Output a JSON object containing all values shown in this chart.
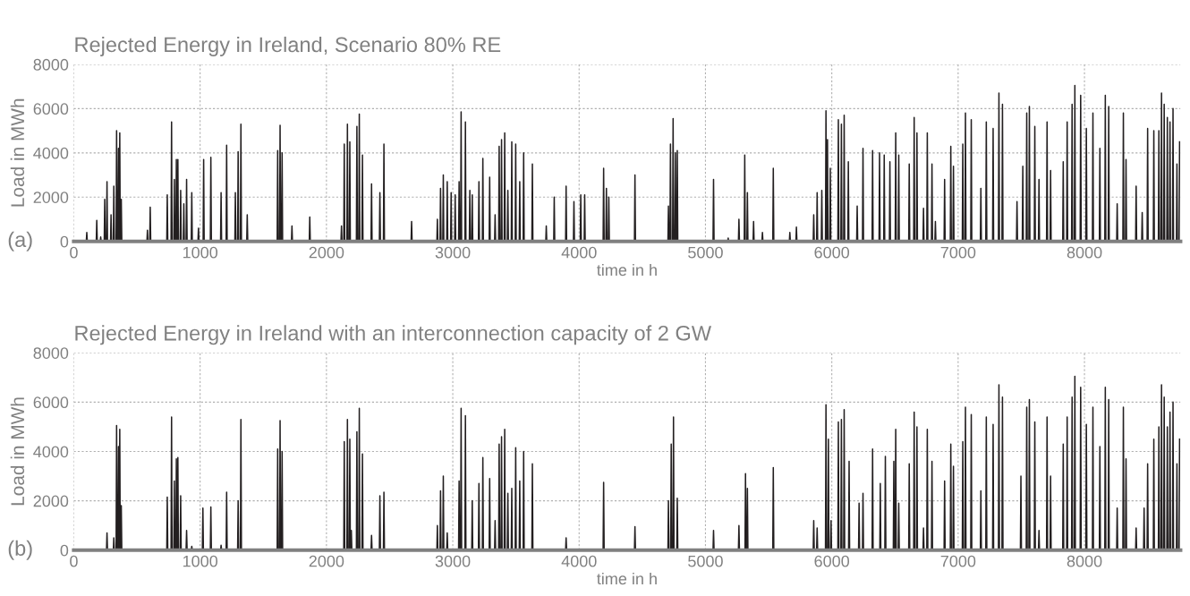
{
  "chart_data": [
    {
      "type": "line",
      "title": "Rejected Energy in Ireland, Scenario 80% RE",
      "xlabel": "time in h",
      "ylabel": "Load in MWh",
      "annotations": [
        "(a)"
      ],
      "color": "#231f20",
      "grid": true,
      "xlim": [
        0,
        8760
      ],
      "ylim": [
        0,
        8000
      ],
      "xticks": [
        0,
        1000,
        2000,
        3000,
        4000,
        5000,
        6000,
        7000,
        8000
      ],
      "yticks": [
        0,
        2000,
        4000,
        6000,
        8000
      ],
      "x": [
        0,
        99,
        103,
        107,
        178,
        182,
        186,
        209,
        213,
        217,
        241,
        245,
        249,
        259,
        263,
        267,
        291,
        295,
        299,
        313,
        317,
        321,
        335,
        339,
        343,
        350,
        354,
        358,
        360,
        364,
        368,
        372,
        376,
        380,
        579,
        583,
        587,
        601,
        605,
        609,
        736,
        740,
        744,
        770,
        774,
        778,
        792,
        796,
        800,
        808,
        812,
        816,
        820,
        824,
        828,
        842,
        846,
        850,
        867,
        871,
        875,
        889,
        893,
        897,
        930,
        934,
        938,
        983,
        987,
        991,
        1024,
        1028,
        1032,
        1081,
        1085,
        1089,
        1162,
        1166,
        1170,
        1206,
        1210,
        1214,
        1275,
        1279,
        1283,
        1297,
        1301,
        1305,
        1319,
        1323,
        1327,
        1369,
        1373,
        1377,
        1610,
        1614,
        1618,
        1629,
        1633,
        1637,
        1645,
        1649,
        1653,
        1723,
        1727,
        1731,
        1864,
        1868,
        1872,
        2115,
        2119,
        2123,
        2137,
        2141,
        2145,
        2162,
        2166,
        2170,
        2181,
        2185,
        2189,
        2237,
        2241,
        2245,
        2256,
        2260,
        2264,
        2281,
        2285,
        2289,
        2353,
        2357,
        2361,
        2419,
        2423,
        2427,
        2451,
        2455,
        2459,
        2670,
        2674,
        2678,
        2874,
        2878,
        2882,
        2899,
        2903,
        2907,
        2921,
        2925,
        2929,
        2952,
        2956,
        2960,
        2983,
        2987,
        2991,
        3015,
        3019,
        3023,
        3046,
        3050,
        3054,
        3062,
        3066,
        3070,
        3096,
        3100,
        3104,
        3131,
        3135,
        3139,
        3150,
        3154,
        3158,
        3203,
        3207,
        3211,
        3234,
        3238,
        3242,
        3288,
        3292,
        3296,
        3331,
        3335,
        3339,
        3363,
        3367,
        3371,
        3382,
        3386,
        3390,
        3407,
        3411,
        3415,
        3432,
        3436,
        3440,
        3463,
        3467,
        3471,
        3494,
        3498,
        3502,
        3526,
        3530,
        3534,
        3557,
        3561,
        3565,
        3626,
        3630,
        3634,
        3736,
        3740,
        3744,
        3799,
        3803,
        3807,
        3893,
        3897,
        3901,
        3955,
        3959,
        3963,
        4009,
        4013,
        4017,
        4040,
        4044,
        4048,
        4190,
        4194,
        4198,
        4212,
        4216,
        4220,
        4231,
        4235,
        4239,
        4438,
        4442,
        4446,
        4703,
        4707,
        4711,
        4719,
        4723,
        4727,
        4740,
        4744,
        4748,
        4758,
        4762,
        4766,
        4773,
        4777,
        4781,
        5060,
        5064,
        5068,
        5176,
        5180,
        5184,
        5261,
        5265,
        5269,
        5307,
        5311,
        5315,
        5328,
        5332,
        5336,
        5377,
        5381,
        5385,
        5447,
        5451,
        5455,
        5533,
        5537,
        5541,
        5664,
        5668,
        5672,
        5716,
        5720,
        5724,
        5853,
        5857,
        5861,
        5880,
        5884,
        5888,
        5917,
        5921,
        5925,
        5950,
        5954,
        5958,
        5962,
        5966,
        5970,
        5984,
        5988,
        5992,
        6048,
        6052,
        6056,
        6072,
        6076,
        6080,
        6094,
        6098,
        6102,
        6127,
        6131,
        6135,
        6197,
        6201,
        6205,
        6243,
        6247,
        6251,
        6319,
        6323,
        6327,
        6374,
        6378,
        6382,
        6411,
        6415,
        6419,
        6456,
        6460,
        6464,
        6502,
        6506,
        6510,
        6526,
        6530,
        6534,
        6609,
        6613,
        6617,
        6648,
        6652,
        6656,
        6670,
        6674,
        6678,
        6722,
        6726,
        6730,
        6752,
        6756,
        6760,
        6789,
        6793,
        6797,
        6816,
        6820,
        6824,
        6889,
        6893,
        6897,
        6938,
        6942,
        6946,
        6959,
        6963,
        6967,
        7033,
        7037,
        7041,
        7054,
        7058,
        7062,
        7100,
        7104,
        7108,
        7176,
        7180,
        7184,
        7219,
        7223,
        7227,
        7273,
        7277,
        7281,
        7319,
        7323,
        7327,
        7347,
        7351,
        7355,
        7462,
        7466,
        7470,
        7508,
        7512,
        7516,
        7539,
        7543,
        7547,
        7560,
        7564,
        7568,
        7603,
        7607,
        7611,
        7636,
        7640,
        7644,
        7700,
        7704,
        7708,
        7728,
        7732,
        7736,
        7828,
        7832,
        7836,
        7859,
        7863,
        7867,
        7898,
        7902,
        7906,
        7920,
        7924,
        7928,
        7966,
        7970,
        7974,
        8011,
        8015,
        8019,
        8063,
        8067,
        8071,
        8118,
        8122,
        8126,
        8161,
        8165,
        8169,
        8188,
        8192,
        8196,
        8255,
        8259,
        8263,
        8304,
        8308,
        8312,
        8325,
        8329,
        8333,
        8405,
        8409,
        8413,
        8453,
        8457,
        8461,
        8496,
        8500,
        8504,
        8545,
        8549,
        8553,
        8585,
        8589,
        8593,
        8606,
        8610,
        8614,
        8627,
        8631,
        8635,
        8652,
        8656,
        8660,
        8673,
        8677,
        8681,
        8697,
        8701,
        8705,
        8728,
        8732,
        8736,
        8749,
        8753
      ],
      "values": [
        0,
        0,
        400,
        0,
        0,
        950,
        0,
        0,
        200,
        0,
        0,
        1900,
        0,
        0,
        2700,
        0,
        0,
        1200,
        0,
        0,
        2500,
        0,
        0,
        5000,
        0,
        0,
        4200,
        0,
        0,
        4900,
        0,
        0,
        1900,
        0,
        0,
        500,
        0,
        0,
        1550,
        0,
        0,
        2100,
        0,
        0,
        5400,
        0,
        0,
        2800,
        0,
        0,
        3700,
        0,
        0,
        3700,
        0,
        0,
        2300,
        0,
        0,
        1700,
        0,
        0,
        2800,
        0,
        0,
        2200,
        0,
        0,
        600,
        0,
        0,
        3700,
        0,
        0,
        3800,
        0,
        0,
        2200,
        0,
        0,
        4350,
        0,
        0,
        2200,
        0,
        0,
        4050,
        0,
        0,
        5300,
        0,
        0,
        1200,
        0,
        0,
        4100,
        0,
        0,
        5250,
        0,
        0,
        4000,
        0,
        0,
        700,
        0,
        0,
        1100,
        0,
        0,
        700,
        0,
        0,
        4400,
        0,
        0,
        5300,
        0,
        0,
        4500,
        0,
        0,
        5200,
        0,
        0,
        5750,
        0,
        0,
        3900,
        0,
        0,
        2600,
        0,
        0,
        2200,
        0,
        0,
        4400,
        0,
        0,
        900,
        0,
        0,
        1000,
        0,
        0,
        2400,
        0,
        0,
        3000,
        0,
        0,
        2700,
        0,
        0,
        2200,
        0,
        0,
        2100,
        0,
        0,
        2700,
        0,
        0,
        5850,
        0,
        0,
        5400,
        0,
        0,
        2300,
        0,
        0,
        2100,
        0,
        0,
        2700,
        0,
        0,
        3750,
        0,
        0,
        2900,
        0,
        0,
        1200,
        0,
        0,
        4300,
        0,
        0,
        4600,
        0,
        0,
        4900,
        0,
        0,
        2300,
        0,
        0,
        4500,
        0,
        0,
        4400,
        0,
        0,
        2700,
        0,
        0,
        4000,
        0,
        0,
        3500,
        0,
        0,
        700,
        0,
        0,
        2000,
        0,
        0,
        2500,
        0,
        0,
        1800,
        0,
        0,
        2100,
        0,
        0,
        2100,
        0,
        0,
        3300,
        0,
        0,
        2400,
        0,
        0,
        2000,
        0,
        0,
        3000,
        0,
        0,
        1600,
        0,
        0,
        4400,
        0,
        0,
        5550,
        0,
        0,
        4000,
        0,
        0,
        4100,
        0,
        0,
        2800,
        0,
        0,
        150,
        0,
        0,
        1000,
        0,
        0,
        3900,
        0,
        0,
        2200,
        0,
        0,
        900,
        0,
        0,
        400,
        0,
        0,
        3300,
        0,
        0,
        400,
        0,
        0,
        650,
        0,
        0,
        1200,
        0,
        0,
        2200,
        0,
        0,
        2300,
        0,
        0,
        5900,
        0,
        0,
        4600,
        0,
        0,
        3300,
        0,
        0,
        5500,
        0,
        0,
        5300,
        0,
        0,
        5700,
        0,
        0,
        3600,
        0,
        0,
        1600,
        0,
        0,
        4200,
        0,
        0,
        4100,
        0,
        0,
        4000,
        0,
        0,
        3900,
        0,
        0,
        3600,
        0,
        0,
        4900,
        0,
        0,
        3900,
        0,
        0,
        3500,
        0,
        0,
        5600,
        0,
        0,
        4900,
        0,
        0,
        1500,
        0,
        0,
        4900,
        0,
        0,
        3500,
        0,
        0,
        900,
        0,
        0,
        2800,
        0,
        0,
        4300,
        0,
        0,
        3400,
        0,
        0,
        4400,
        0,
        0,
        5800,
        0,
        0,
        5500,
        0,
        0,
        2400,
        0,
        0,
        5400,
        0,
        0,
        5100,
        0,
        0,
        6700,
        0,
        0,
        6200,
        0,
        0,
        1800,
        0,
        0,
        3400,
        0,
        0,
        5800,
        0,
        0,
        6100,
        0,
        0,
        5200,
        0,
        0,
        2800,
        0,
        0,
        5400,
        0,
        0,
        3200,
        0,
        0,
        3600,
        0,
        0,
        5400,
        0,
        0,
        6200,
        0,
        0,
        7050,
        0,
        0,
        6600,
        0,
        0,
        5100,
        0,
        0,
        5800,
        0,
        0,
        4200,
        0,
        0,
        6600,
        0,
        0,
        6100,
        0,
        0,
        1700,
        0,
        0,
        5800,
        0,
        0,
        3700,
        0,
        0,
        2500,
        0,
        0,
        1300,
        0,
        0,
        5100,
        0,
        0,
        5000,
        0,
        0,
        5000,
        0,
        0,
        6700,
        0,
        0,
        6200,
        0,
        0,
        5600,
        0,
        0,
        5400,
        0,
        0,
        6000,
        0,
        0,
        3500,
        0,
        0,
        4500
      ]
    },
    {
      "type": "line",
      "title": "Rejected Energy in Ireland with an interconnection capacity of 2 GW",
      "xlabel": "time in h",
      "ylabel": "Load in MWh",
      "annotations": [
        "(b)"
      ],
      "color": "#231f20",
      "grid": true,
      "xlim": [
        0,
        8760
      ],
      "ylim": [
        0,
        8000
      ],
      "xticks": [
        0,
        1000,
        2000,
        3000,
        4000,
        5000,
        6000,
        7000,
        8000
      ],
      "yticks": [
        0,
        2000,
        4000,
        6000,
        8000
      ],
      "x": [
        0,
        259,
        263,
        267,
        313,
        317,
        321,
        335,
        339,
        343,
        350,
        354,
        358,
        360,
        364,
        368,
        372,
        376,
        380,
        736,
        740,
        744,
        770,
        774,
        778,
        792,
        796,
        800,
        808,
        812,
        816,
        820,
        824,
        828,
        842,
        846,
        850,
        889,
        893,
        897,
        930,
        934,
        938,
        1018,
        1022,
        1026,
        1081,
        1085,
        1089,
        1162,
        1166,
        1170,
        1206,
        1210,
        1214,
        1297,
        1301,
        1305,
        1319,
        1323,
        1327,
        1610,
        1614,
        1618,
        1629,
        1633,
        1637,
        1645,
        1649,
        1653,
        2137,
        2141,
        2145,
        2162,
        2166,
        2170,
        2181,
        2185,
        2189,
        2193,
        2197,
        2201,
        2237,
        2241,
        2245,
        2256,
        2260,
        2264,
        2281,
        2285,
        2289,
        2353,
        2357,
        2361,
        2419,
        2423,
        2427,
        2451,
        2455,
        2459,
        2874,
        2878,
        2882,
        2899,
        2903,
        2907,
        2921,
        2925,
        2929,
        2952,
        2956,
        2960,
        3046,
        3050,
        3054,
        3062,
        3066,
        3070,
        3096,
        3100,
        3104,
        3150,
        3154,
        3158,
        3203,
        3207,
        3211,
        3234,
        3238,
        3242,
        3288,
        3292,
        3296,
        3331,
        3335,
        3339,
        3363,
        3367,
        3371,
        3382,
        3386,
        3390,
        3407,
        3411,
        3415,
        3432,
        3436,
        3440,
        3463,
        3467,
        3471,
        3494,
        3498,
        3502,
        3526,
        3530,
        3534,
        3557,
        3561,
        3565,
        3626,
        3630,
        3634,
        3893,
        3897,
        3901,
        4190,
        4194,
        4198,
        4438,
        4442,
        4446,
        4703,
        4707,
        4711,
        4725,
        4729,
        4733,
        4743,
        4747,
        4751,
        4773,
        4777,
        4781,
        5060,
        5064,
        5068,
        5261,
        5265,
        5269,
        5313,
        5317,
        5321,
        5328,
        5332,
        5336,
        5533,
        5537,
        5541,
        5853,
        5857,
        5861,
        5880,
        5884,
        5888,
        5950,
        5954,
        5958,
        5969,
        5973,
        5977,
        5990,
        5994,
        5998,
        6048,
        6052,
        6056,
        6072,
        6076,
        6080,
        6094,
        6098,
        6102,
        6133,
        6137,
        6141,
        6212,
        6216,
        6220,
        6243,
        6247,
        6251,
        6319,
        6323,
        6327,
        6380,
        6384,
        6388,
        6420,
        6424,
        6428,
        6487,
        6491,
        6495,
        6502,
        6506,
        6510,
        6526,
        6530,
        6534,
        6609,
        6613,
        6617,
        6648,
        6652,
        6656,
        6670,
        6674,
        6678,
        6722,
        6726,
        6730,
        6752,
        6756,
        6760,
        6789,
        6793,
        6797,
        6889,
        6893,
        6897,
        6938,
        6942,
        6946,
        6959,
        6963,
        6967,
        7033,
        7037,
        7041,
        7054,
        7058,
        7062,
        7100,
        7104,
        7108,
        7176,
        7180,
        7184,
        7219,
        7223,
        7227,
        7273,
        7277,
        7281,
        7319,
        7323,
        7327,
        7347,
        7351,
        7355,
        7493,
        7497,
        7501,
        7539,
        7543,
        7547,
        7560,
        7564,
        7568,
        7603,
        7607,
        7611,
        7636,
        7640,
        7644,
        7700,
        7704,
        7708,
        7728,
        7732,
        7736,
        7828,
        7832,
        7836,
        7859,
        7863,
        7867,
        7898,
        7902,
        7906,
        7920,
        7924,
        7928,
        7966,
        7970,
        7974,
        8011,
        8015,
        8019,
        8063,
        8067,
        8071,
        8118,
        8122,
        8126,
        8161,
        8165,
        8169,
        8188,
        8192,
        8196,
        8255,
        8259,
        8263,
        8304,
        8308,
        8312,
        8325,
        8329,
        8333,
        8405,
        8409,
        8413,
        8468,
        8472,
        8476,
        8496,
        8500,
        8504,
        8545,
        8549,
        8553,
        8585,
        8589,
        8593,
        8606,
        8610,
        8614,
        8627,
        8631,
        8635,
        8652,
        8656,
        8660,
        8673,
        8677,
        8681,
        8697,
        8701,
        8705,
        8728,
        8732,
        8736,
        8749,
        8753
      ],
      "values": [
        0,
        0,
        700,
        0,
        0,
        500,
        0,
        0,
        5050,
        0,
        0,
        4200,
        0,
        0,
        4900,
        0,
        0,
        1800,
        0,
        0,
        2150,
        0,
        0,
        5400,
        0,
        0,
        2800,
        0,
        0,
        3700,
        0,
        0,
        3750,
        0,
        0,
        2200,
        0,
        0,
        800,
        0,
        0,
        150,
        0,
        0,
        1700,
        0,
        0,
        1750,
        0,
        0,
        200,
        0,
        0,
        2350,
        0,
        0,
        2000,
        0,
        0,
        5300,
        0,
        0,
        4100,
        0,
        0,
        5250,
        0,
        0,
        4000,
        0,
        0,
        4400,
        0,
        0,
        5300,
        0,
        0,
        4500,
        0,
        0,
        800,
        0,
        0,
        4800,
        0,
        0,
        5750,
        0,
        0,
        3900,
        0,
        0,
        600,
        0,
        0,
        2200,
        0,
        0,
        2350,
        0,
        0,
        1000,
        0,
        0,
        2400,
        0,
        0,
        3000,
        0,
        0,
        700,
        0,
        0,
        2800,
        0,
        0,
        5750,
        0,
        0,
        5450,
        0,
        0,
        2000,
        0,
        0,
        2700,
        0,
        0,
        3750,
        0,
        0,
        2900,
        0,
        0,
        1200,
        0,
        0,
        4300,
        0,
        0,
        4600,
        0,
        0,
        4900,
        0,
        0,
        2300,
        0,
        0,
        2500,
        0,
        0,
        4150,
        0,
        0,
        2800,
        0,
        0,
        4000,
        0,
        0,
        3500,
        0,
        0,
        500,
        0,
        0,
        2750,
        0,
        0,
        950,
        0,
        0,
        2000,
        0,
        0,
        4300,
        0,
        0,
        5400,
        0,
        0,
        2100,
        0,
        0,
        800,
        0,
        0,
        1000,
        0,
        0,
        3100,
        0,
        0,
        2500,
        0,
        0,
        3350,
        0,
        0,
        1200,
        0,
        0,
        900,
        0,
        0,
        5900,
        0,
        0,
        4500,
        0,
        0,
        1200,
        0,
        0,
        5200,
        0,
        0,
        5300,
        0,
        0,
        5700,
        0,
        0,
        3600,
        0,
        0,
        1900,
        0,
        0,
        2300,
        0,
        0,
        4100,
        0,
        0,
        2700,
        0,
        0,
        3800,
        0,
        0,
        3600,
        0,
        0,
        4900,
        0,
        0,
        1900,
        0,
        0,
        3500,
        0,
        0,
        5600,
        0,
        0,
        5000,
        0,
        0,
        900,
        0,
        0,
        4900,
        0,
        0,
        3600,
        0,
        0,
        2800,
        0,
        0,
        4300,
        0,
        0,
        3400,
        0,
        0,
        4400,
        0,
        0,
        5800,
        0,
        0,
        5500,
        0,
        0,
        2400,
        0,
        0,
        5400,
        0,
        0,
        5100,
        0,
        0,
        6700,
        0,
        0,
        6200,
        0,
        0,
        3000,
        0,
        0,
        5800,
        0,
        0,
        6100,
        0,
        0,
        5200,
        0,
        0,
        800,
        0,
        0,
        5400,
        0,
        0,
        3000,
        0,
        0,
        4300,
        0,
        0,
        5400,
        0,
        0,
        6200,
        0,
        0,
        7050,
        0,
        0,
        6600,
        0,
        0,
        5100,
        0,
        0,
        5800,
        0,
        0,
        4200,
        0,
        0,
        6600,
        0,
        0,
        6100,
        0,
        0,
        1700,
        0,
        0,
        5800,
        0,
        0,
        3700,
        0,
        0,
        900,
        0,
        0,
        1700,
        0,
        0,
        3500,
        0,
        0,
        4500,
        0,
        0,
        5000,
        0,
        0,
        6700,
        0,
        0,
        6200,
        0,
        0,
        5000,
        0,
        0,
        5600,
        0,
        0,
        6000,
        0,
        0,
        3500,
        0,
        0,
        4500
      ]
    }
  ]
}
